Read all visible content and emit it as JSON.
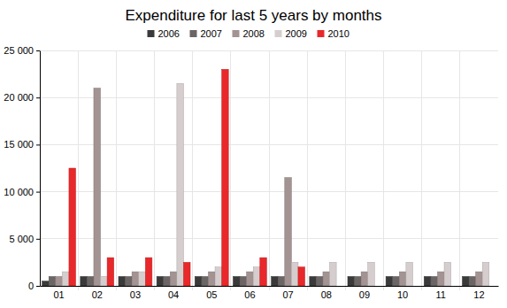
{
  "chart_data": {
    "type": "bar",
    "title": "Expenditure for last 5 years by months",
    "categories": [
      "01",
      "02",
      "03",
      "04",
      "05",
      "06",
      "07",
      "08",
      "09",
      "10",
      "11",
      "12"
    ],
    "series": [
      {
        "name": "2006",
        "color": "#3a3a3a",
        "values": [
          500,
          1000,
          1000,
          1000,
          1000,
          1000,
          1000,
          1000,
          1000,
          1000,
          1000,
          1000
        ]
      },
      {
        "name": "2007",
        "color": "#6b6565",
        "values": [
          1000,
          1000,
          1000,
          1000,
          1000,
          1000,
          1000,
          1000,
          1000,
          1000,
          1000,
          1000
        ]
      },
      {
        "name": "2008",
        "color": "#a39393",
        "values": [
          1000,
          21000,
          1500,
          1500,
          1500,
          1500,
          11500,
          1500,
          1500,
          1500,
          1500,
          1500
        ]
      },
      {
        "name": "2009",
        "color": "#d6cece",
        "values": [
          1500,
          1000,
          1500,
          21500,
          2000,
          2000,
          2500,
          2500,
          2500,
          2500,
          2500,
          2500
        ]
      },
      {
        "name": "2010",
        "color": "#e8282a",
        "values": [
          12500,
          3000,
          3000,
          2500,
          23000,
          3000,
          2000,
          null,
          null,
          null,
          null,
          null
        ]
      }
    ],
    "ylim": [
      0,
      25000
    ],
    "yticks": [
      0,
      {
        "value": 5000,
        "label": "5 000"
      },
      {
        "value": 10000,
        "label": "10 000"
      },
      {
        "value": 15000,
        "label": "15 000"
      },
      {
        "value": 20000,
        "label": "20 000"
      },
      {
        "value": 25000,
        "label": "25 000"
      }
    ],
    "grid": true,
    "legend": "top"
  }
}
